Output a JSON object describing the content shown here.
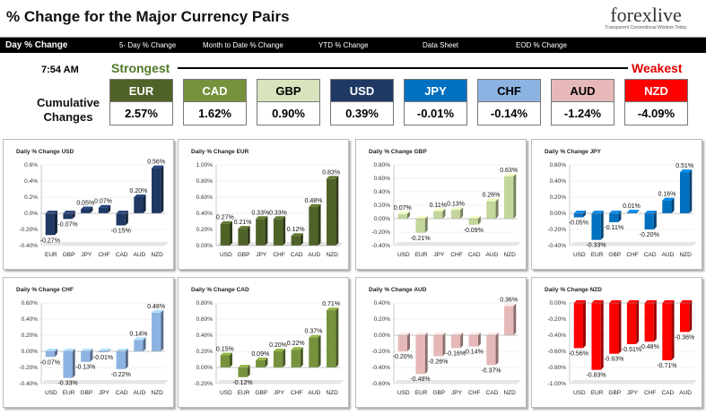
{
  "header": {
    "title": "% Change for the Major Currency Pairs",
    "logo": {
      "text": "forexlive",
      "tagline": "Transparent Conventional Wisdom Today"
    }
  },
  "nav": [
    {
      "label": "Day % Change",
      "active": true
    },
    {
      "label": "5- Day % Change",
      "active": false
    },
    {
      "label": "Month to Date % Change",
      "active": false
    },
    {
      "label": "YTD % Change",
      "active": false
    },
    {
      "label": "Data Sheet",
      "active": false
    },
    {
      "label": "EOD % Change",
      "active": false
    }
  ],
  "summary": {
    "time": "7:54 AM",
    "strongest_label": "Strongest",
    "weakest_label": "Weakest",
    "row_label_line1": "Cumulative",
    "row_label_line2": "Changes",
    "currencies": [
      {
        "code": "EUR",
        "value": "2.57%",
        "color": "#4f6228",
        "text_color": "#ffffff"
      },
      {
        "code": "CAD",
        "value": "1.62%",
        "color": "#76923c",
        "text_color": "#ffffff"
      },
      {
        "code": "GBP",
        "value": "0.90%",
        "color": "#d7e4bd",
        "text_color": "#000000"
      },
      {
        "code": "USD",
        "value": "0.39%",
        "color": "#1f3864",
        "text_color": "#ffffff"
      },
      {
        "code": "JPY",
        "value": "-0.01%",
        "color": "#0070c0",
        "text_color": "#ffffff"
      },
      {
        "code": "CHF",
        "value": "-0.14%",
        "color": "#8db3e2",
        "text_color": "#000000"
      },
      {
        "code": "AUD",
        "value": "-1.24%",
        "color": "#e6b9b8",
        "text_color": "#000000"
      },
      {
        "code": "NZD",
        "value": "-4.09%",
        "color": "#ff0000",
        "text_color": "#ffffff"
      }
    ]
  },
  "chart_data": [
    {
      "type": "bar",
      "title": "Daily % Change USD",
      "color": "#1f3864",
      "categories": [
        "EUR",
        "GBP",
        "JPY",
        "CHF",
        "CAD",
        "AUD",
        "NZD"
      ],
      "values": [
        -0.27,
        -0.07,
        0.05,
        0.07,
        -0.15,
        0.2,
        0.56
      ],
      "labels": [
        "-0.27%",
        "-0.07%",
        "0.05%",
        "0.07%",
        "-0.15%",
        "0.20%",
        "0.56%"
      ],
      "ylim": [
        -0.4,
        0.6
      ],
      "ticks": [
        0.6,
        0.4,
        0.2,
        0,
        -0.2,
        -0.4
      ],
      "tick_labels": [
        "0.6%",
        "0.4%",
        "0.2%",
        "0.0%",
        "-0.20%",
        "-0.40%"
      ]
    },
    {
      "type": "bar",
      "title": "Daily % Change EUR",
      "color": "#4f6228",
      "categories": [
        "USD",
        "GBP",
        "JPY",
        "CHF",
        "CAD",
        "AUD",
        "NZD"
      ],
      "values": [
        0.27,
        0.21,
        0.33,
        0.33,
        0.12,
        0.48,
        0.83
      ],
      "labels": [
        "0.27%",
        "0.21%",
        "0.33%",
        "0.33%",
        "0.12%",
        "0.48%",
        "0.83%"
      ],
      "ylim": [
        0,
        1.0
      ],
      "ticks": [
        1.0,
        0.8,
        0.6,
        0.4,
        0.2,
        0
      ],
      "tick_labels": [
        "1.00%",
        "0.80%",
        "0.60%",
        "0.40%",
        "0.20%",
        "0.00%"
      ]
    },
    {
      "type": "bar",
      "title": "Daily % Change GBP",
      "color": "#c3d69b",
      "categories": [
        "USD",
        "EUR",
        "JPY",
        "CHF",
        "CAD",
        "AUD",
        "NZD"
      ],
      "values": [
        0.07,
        -0.21,
        0.11,
        0.13,
        -0.09,
        0.26,
        0.63
      ],
      "labels": [
        "0.07%",
        "-0.21%",
        "0.11%",
        "0.13%",
        "-0.09%",
        "0.26%",
        "0.63%"
      ],
      "ylim": [
        -0.4,
        0.8
      ],
      "ticks": [
        0.8,
        0.6,
        0.4,
        0.2,
        0,
        -0.2,
        -0.4
      ],
      "tick_labels": [
        "0.80%",
        "0.60%",
        "0.40%",
        "0.20%",
        "0.00%",
        "-0.20%",
        "-0.40%"
      ]
    },
    {
      "type": "bar",
      "title": "Daily % Change JPY",
      "color": "#0070c0",
      "categories": [
        "USD",
        "EUR",
        "GBP",
        "CHF",
        "CAD",
        "AUD",
        "NZD"
      ],
      "values": [
        -0.05,
        -0.33,
        -0.11,
        0.01,
        -0.2,
        0.16,
        0.51
      ],
      "labels": [
        "-0.05%",
        "-0.33%",
        "-0.11%",
        "0.01%",
        "-0.20%",
        "0.16%",
        "0.51%"
      ],
      "ylim": [
        -0.4,
        0.6
      ],
      "ticks": [
        0.6,
        0.4,
        0.2,
        0,
        -0.2,
        -0.4
      ],
      "tick_labels": [
        "0.60%",
        "0.40%",
        "0.20%",
        "0.00%",
        "-0.20%",
        "-0.40%"
      ]
    },
    {
      "type": "bar",
      "title": "Daily % Change CHF",
      "color": "#8db3e2",
      "categories": [
        "USD",
        "EUR",
        "GBP",
        "JPY",
        "CAD",
        "AUD",
        "NZD"
      ],
      "values": [
        -0.07,
        -0.33,
        -0.13,
        -0.01,
        -0.22,
        0.14,
        0.48
      ],
      "labels": [
        "-0.07%",
        "-0.33%",
        "-0.13%",
        "-0.01%",
        "-0.22%",
        "0.14%",
        "0.48%"
      ],
      "ylim": [
        -0.4,
        0.6
      ],
      "ticks": [
        0.6,
        0.4,
        0.2,
        0,
        -0.2,
        -0.4
      ],
      "tick_labels": [
        "0.60%",
        "0.40%",
        "0.20%",
        "0.00%",
        "-0.20%",
        "-0.40%"
      ]
    },
    {
      "type": "bar",
      "title": "Daily % Change CAD",
      "color": "#76923c",
      "categories": [
        "USD",
        "EUR",
        "GBP",
        "JPY",
        "CHF",
        "AUD",
        "NZD"
      ],
      "values": [
        0.15,
        -0.12,
        0.09,
        0.2,
        0.22,
        0.37,
        0.71
      ],
      "labels": [
        "0.15%",
        "-0.12%",
        "0.09%",
        "0.20%",
        "0.22%",
        "0.37%",
        "0.71%"
      ],
      "ylim": [
        -0.2,
        0.8
      ],
      "ticks": [
        0.8,
        0.6,
        0.4,
        0.2,
        0,
        -0.2
      ],
      "tick_labels": [
        "0.80%",
        "0.60%",
        "0.40%",
        "0.20%",
        "0.00%",
        "-0.20%"
      ]
    },
    {
      "type": "bar",
      "title": "Daily % Change AUD",
      "color": "#e6b9b8",
      "categories": [
        "USD",
        "EUR",
        "GBP",
        "JPY",
        "CHF",
        "CAD",
        "NZD"
      ],
      "values": [
        -0.2,
        -0.48,
        -0.26,
        -0.16,
        -0.14,
        -0.37,
        0.36
      ],
      "labels": [
        "-0.20%",
        "-0.48%",
        "-0.26%",
        "-0.16%",
        "-0.14%",
        "-0.37%",
        "0.36%"
      ],
      "ylim": [
        -0.6,
        0.4
      ],
      "ticks": [
        0.4,
        0.2,
        0,
        -0.2,
        -0.4,
        -0.6
      ],
      "tick_labels": [
        "0.40%",
        "0.20%",
        "0.00%",
        "-0.20%",
        "-0.40%",
        "-0.60%"
      ]
    },
    {
      "type": "bar",
      "title": "Daily % Change NZD",
      "color": "#ff0000",
      "categories": [
        "USD",
        "EUR",
        "GBP",
        "JPY",
        "CHF",
        "CAD",
        "AUD"
      ],
      "values": [
        -0.56,
        -0.83,
        -0.63,
        -0.51,
        -0.48,
        -0.71,
        -0.36
      ],
      "labels": [
        "-0.56%",
        "-0.83%",
        "-0.63%",
        "-0.51%",
        "-0.48%",
        "-0.71%",
        "-0.36%"
      ],
      "ylim": [
        -1.0,
        0
      ],
      "ticks": [
        0,
        -0.2,
        -0.4,
        -0.6,
        -0.8,
        -1.0
      ],
      "tick_labels": [
        "0.00%",
        "-0.20%",
        "-0.40%",
        "-0.60%",
        "-0.80%",
        "-1.00%"
      ]
    }
  ]
}
